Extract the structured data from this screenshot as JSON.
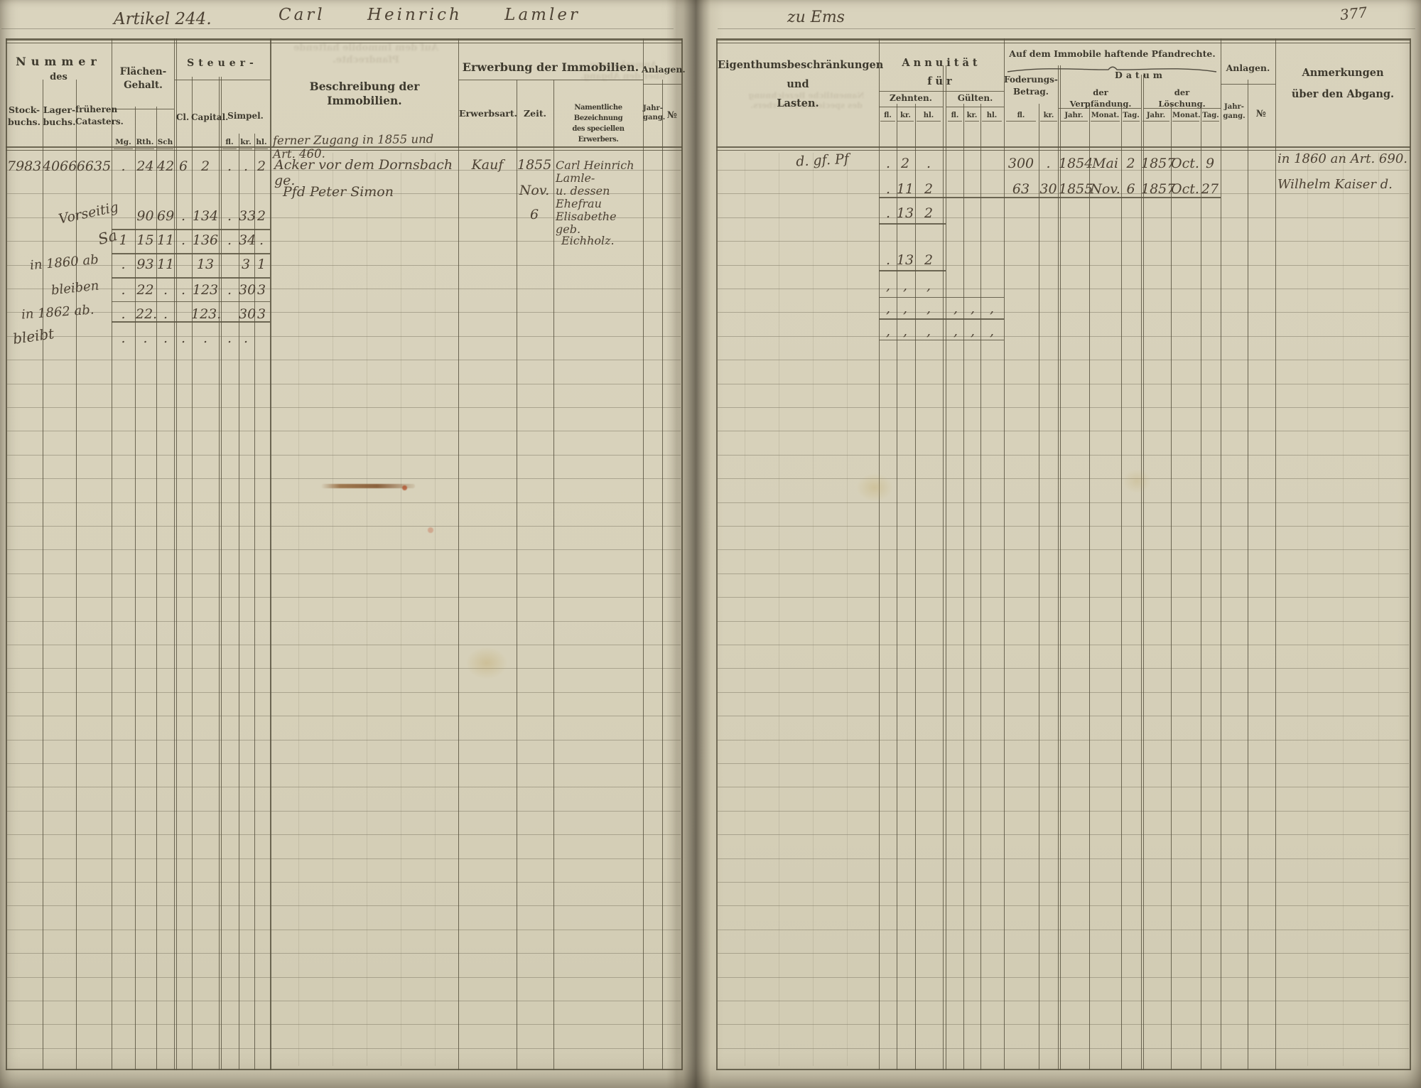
{
  "meta": {
    "artikel_label": "Artikel 244.",
    "owner_name": "Carl Heinrich Lamler",
    "top_note": "zu Ems",
    "folio_number": "377"
  },
  "left_page": {
    "headers": {
      "nummer_title": "Nummer",
      "nummer_sub": "des",
      "stockbuchs": "Stock-\nbuchs.",
      "lagerbuchs": "Lager-\nbuchs.",
      "cataster": "früheren\nCatasters.",
      "flaechen_title": "Flächen-\nGehalt.",
      "mg": "Mg.",
      "rth": "Rth.",
      "sch": "Sch",
      "steuer_title": "Steuer-",
      "cl": "Cl.",
      "capital": "Capital.",
      "simpel": "Simpel.",
      "fl": "fl.",
      "kr": "kr.",
      "hl": "hl.",
      "beschreibung_title": "Beschreibung der Immobilien.",
      "erwerbung_title": "Erwerbung der Immobilien.",
      "erwerbsart": "Erwerbsart.",
      "zeit": "Zeit.",
      "erwerber": "Namentliche Bezeichnung\ndes speciellen Erwerbers.",
      "anlagen_title": "Anlagen.",
      "jahrgang": "Jahr-\ngang.",
      "nr": "№"
    },
    "overflow_note": "ferner Zugang in 1855 und Art. 460.",
    "rows": [
      {
        "stock": "7983",
        "lager": "4066",
        "cataster": "6635",
        "mg": ".",
        "rth": "24",
        "sch": "42",
        "cl": "6",
        "capital": "2",
        "fl": ".",
        "kr": ".",
        "hl": "2",
        "beschreibung": "Acker vor dem Dornsbach ge.",
        "erwerbsart": "Kauf",
        "zeit": "1855",
        "erwerber": "Carl Heinrich Lamle-"
      },
      {
        "beschreibung": "Pfd Peter Simon",
        "zeit": "Nov.",
        "erwerber": "u. dessen Ehefrau"
      },
      {
        "label": "Vorseitig",
        "rth": "90",
        "sch": "69",
        "cl": ".",
        "capital": "134",
        "fl": ".",
        "kr": "33",
        "hl": "2",
        "zeit": "6",
        "erwerber": "Elisabethe geb."
      },
      {
        "label": "Sa",
        "mg": "1",
        "rth": "15",
        "sch": "11",
        "cl": ".",
        "capital": "136",
        "fl": ".",
        "kr": "34",
        "hl": ".",
        "erwerber": "Eichholz."
      },
      {
        "label": "in 1860 ab",
        "mg": ".",
        "rth": "93",
        "sch": "11",
        "capital": "13",
        "kr": "3",
        "hl": "1"
      },
      {
        "label": "bleiben",
        "mg": ".",
        "rth": "22",
        "sch": ".",
        "cl": ".",
        "capital": "123",
        "fl": ".",
        "kr": "30",
        "hl": "3"
      },
      {
        "label": "in 1862 ab.",
        "mg": ".",
        "rth": "22.",
        "sch": ".",
        "capital": "123.",
        "kr": "30",
        "hl": "3"
      },
      {
        "label": "bleibt",
        "mg": ".",
        "rth": ".",
        "sch": ".",
        "cl": ".",
        "capital": ".",
        "fl": ".",
        "kr": "."
      }
    ]
  },
  "right_page": {
    "headers": {
      "lasten_title": "Eigenthumsbeschränkungen\nund\nLasten.",
      "annuitaet_title": "Annuität\nfür",
      "zehnten": "Zehnten.",
      "guelten": "Gülten.",
      "fl": "fl.",
      "kr": "kr.",
      "hl": "hl.",
      "pfandrechte_title": "Auf dem Immobile haftende Pfandrechte.",
      "foderung": "Foderungs-\nBetrag.",
      "datum": "Datum",
      "verpfaendung": "der\nVerpfändung.",
      "loeschung": "der\nLöschung.",
      "jahr": "Jahr.",
      "monat": "Monat.",
      "tag": "Tag.",
      "anlagen_title": "Anlagen.",
      "jahrgang": "Jahr-\ngang.",
      "nr": "№",
      "anmerkungen_title": "Anmerkungen\nüber den Abgang."
    },
    "rows": [
      {
        "lasten": "d. gf. Pf",
        "z_fl": ".",
        "z_kr": "2",
        "z_hl": ".",
        "b_fl": "300",
        "b_kr": ".",
        "v_jahr": "1854",
        "v_monat": "Mai",
        "v_tag": "2",
        "l_jahr": "1857",
        "l_monat": "Oct.",
        "l_tag": "9",
        "anmerkung": "in 1860 an Art. 690."
      },
      {
        "z_fl": ".",
        "z_kr": "11",
        "z_hl": "2",
        "b_fl": "63",
        "b_kr": "30",
        "v_jahr": "1855",
        "v_monat": "Nov.",
        "v_tag": "6",
        "l_jahr": "1857",
        "l_monat": "Oct.",
        "l_tag": "27",
        "anmerkung": "Wilhelm Kaiser d."
      },
      {
        "z_fl": ".",
        "z_kr": "13",
        "z_hl": "2"
      },
      {
        "z_fl": ".",
        "z_kr": "13",
        "z_hl": "2"
      },
      {
        "z_fl": ",",
        "z_kr": ",",
        "z_hl": ","
      },
      {
        "z_fl": ",",
        "z_kr": ",",
        "z_hl": ",",
        "g_fl": ",",
        "g_kr": ",",
        "g_hl": ","
      },
      {
        "z_fl": ",",
        "z_kr": ",",
        "z_hl": ",",
        "g_fl": ",",
        "g_kr": ",",
        "g_hl": ","
      }
    ]
  }
}
